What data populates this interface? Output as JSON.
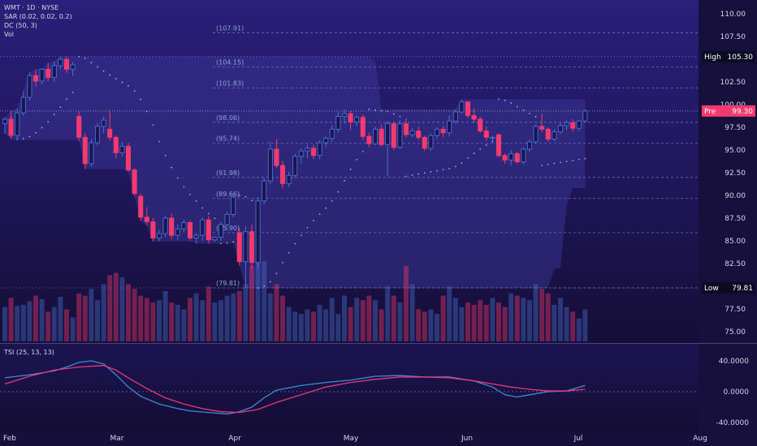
{
  "header": {
    "symbol_line": "WMT · 1D · NYSE",
    "sar_label": "SAR (0.02, 0.02, 0.2)",
    "dc_label": "DC (50, 3)",
    "vol_label": "Vol"
  },
  "tsi_panel": {
    "label": "TSI (25, 13, 13)",
    "ticks": [
      "40.0000",
      "0.0000",
      "-40.0000"
    ]
  },
  "colors": {
    "background": "#160f3a",
    "up": "#4a6fd0",
    "down": "#f23a6e",
    "dc_fill": "#3f3a9e",
    "tsi_line": "#3f8ad8",
    "tsi_signal": "#e8387a",
    "high_tag": "#0b0c22",
    "pre_tag": "#f23a6e"
  },
  "chart_data": {
    "type": "candlestick",
    "x_labels": [
      "Feb",
      "Mar",
      "Apr",
      "May",
      "Jun",
      "Jul",
      "Aug"
    ],
    "y_ticks": [
      "110.00",
      "107.50",
      "105.30",
      "102.50",
      "100.00",
      "97.50",
      "95.00",
      "92.50",
      "90.00",
      "87.50",
      "85.00",
      "82.50",
      "80.00",
      "77.50",
      "75.00"
    ],
    "y_range": [
      74,
      111
    ],
    "high": {
      "label": "High",
      "value": "105.30"
    },
    "low": {
      "label": "Low",
      "value": "79.81"
    },
    "pre": {
      "label": "Pre",
      "value": "99.30"
    },
    "fib_levels": [
      "(107.91)",
      "(104.15)",
      "(101.83)",
      "(98.06)",
      "(95.74)",
      "(91.98)",
      "(89.66)",
      "(85.90)",
      "(79.81)"
    ],
    "candles": [
      [
        97.9,
        98.6,
        96.8,
        98.4
      ],
      [
        98.4,
        99.3,
        96.2,
        96.6
      ],
      [
        96.6,
        99.6,
        96.1,
        99.1
      ],
      [
        99.1,
        101.5,
        98.8,
        100.8
      ],
      [
        100.8,
        103.6,
        100.4,
        103.2
      ],
      [
        103.2,
        103.9,
        102.0,
        102.6
      ],
      [
        102.6,
        104.0,
        102.2,
        103.9
      ],
      [
        103.9,
        104.6,
        102.6,
        103.0
      ],
      [
        103.0,
        104.8,
        102.5,
        104.3
      ],
      [
        104.3,
        105.3,
        103.9,
        105.0
      ],
      [
        105.0,
        105.3,
        103.5,
        103.9
      ],
      [
        103.9,
        104.7,
        103.2,
        104.4
      ],
      [
        98.7,
        99.3,
        96.0,
        96.4
      ],
      [
        96.4,
        96.9,
        92.9,
        93.5
      ],
      [
        93.5,
        96.2,
        93.2,
        95.8
      ],
      [
        95.8,
        98.0,
        95.5,
        97.6
      ],
      [
        97.6,
        98.7,
        96.9,
        98.3
      ],
      [
        97.3,
        99.4,
        96.0,
        96.4
      ],
      [
        96.4,
        96.6,
        94.1,
        94.7
      ],
      [
        94.7,
        95.9,
        94.3,
        95.4
      ],
      [
        95.4,
        95.8,
        92.6,
        92.8
      ],
      [
        92.8,
        93.0,
        89.9,
        90.2
      ],
      [
        89.9,
        90.2,
        87.2,
        87.6
      ],
      [
        87.6,
        88.7,
        86.7,
        87.1
      ],
      [
        87.1,
        87.5,
        84.9,
        85.3
      ],
      [
        85.3,
        86.2,
        84.9,
        85.8
      ],
      [
        85.8,
        87.8,
        85.4,
        87.5
      ],
      [
        87.5,
        88.0,
        85.2,
        85.6
      ],
      [
        85.6,
        86.8,
        85.1,
        86.3
      ],
      [
        86.3,
        87.4,
        85.9,
        87.0
      ],
      [
        87.0,
        87.2,
        85.0,
        85.3
      ],
      [
        85.3,
        85.9,
        84.7,
        85.6
      ],
      [
        85.6,
        87.6,
        85.0,
        87.3
      ],
      [
        87.3,
        87.7,
        84.7,
        85.1
      ],
      [
        85.1,
        85.5,
        84.9,
        85.4
      ],
      [
        85.4,
        87.1,
        85.0,
        86.8
      ],
      [
        86.8,
        88.2,
        86.3,
        87.9
      ],
      [
        87.9,
        90.0,
        87.6,
        89.8
      ],
      [
        85.9,
        86.4,
        82.3,
        82.7
      ],
      [
        82.7,
        86.6,
        79.8,
        86.0
      ],
      [
        86.0,
        86.8,
        81.9,
        82.6
      ],
      [
        82.6,
        89.8,
        82.0,
        89.4
      ],
      [
        89.4,
        91.9,
        89.0,
        91.6
      ],
      [
        91.6,
        95.9,
        91.2,
        95.1
      ],
      [
        95.1,
        96.2,
        93.0,
        93.3
      ],
      [
        93.3,
        93.8,
        90.8,
        91.3
      ],
      [
        91.3,
        92.6,
        90.9,
        92.2
      ],
      [
        92.2,
        94.6,
        91.9,
        94.3
      ],
      [
        94.3,
        95.2,
        93.5,
        94.9
      ],
      [
        94.9,
        95.6,
        94.1,
        95.2
      ],
      [
        95.2,
        95.6,
        94.0,
        94.4
      ],
      [
        94.4,
        96.1,
        94.0,
        95.8
      ],
      [
        95.8,
        96.5,
        95.3,
        96.3
      ],
      [
        96.3,
        97.7,
        95.9,
        97.3
      ],
      [
        97.3,
        99.2,
        96.9,
        98.7
      ],
      [
        98.7,
        99.5,
        97.9,
        99.0
      ],
      [
        99.0,
        99.3,
        97.2,
        98.1
      ],
      [
        98.1,
        98.9,
        97.7,
        98.6
      ],
      [
        98.6,
        98.9,
        96.1,
        96.5
      ],
      [
        96.5,
        96.9,
        95.3,
        95.7
      ],
      [
        95.7,
        97.6,
        95.5,
        97.3
      ],
      [
        97.3,
        97.8,
        95.4,
        95.6
      ],
      [
        95.6,
        98.2,
        92.1,
        97.9
      ],
      [
        97.9,
        98.1,
        95.0,
        95.3
      ],
      [
        95.3,
        98.3,
        95.1,
        97.9
      ],
      [
        97.9,
        98.5,
        96.4,
        96.7
      ],
      [
        96.7,
        97.4,
        96.4,
        97.1
      ],
      [
        97.1,
        97.6,
        96.1,
        96.4
      ],
      [
        96.4,
        96.6,
        94.9,
        95.2
      ],
      [
        95.2,
        96.8,
        94.9,
        96.6
      ],
      [
        96.6,
        97.5,
        96.2,
        97.3
      ],
      [
        97.3,
        97.7,
        96.4,
        96.9
      ],
      [
        96.9,
        98.8,
        96.5,
        98.2
      ],
      [
        98.2,
        99.5,
        97.9,
        99.2
      ],
      [
        99.2,
        100.6,
        99.0,
        100.3
      ],
      [
        100.3,
        100.4,
        98.5,
        98.8
      ],
      [
        98.8,
        99.6,
        98.0,
        98.4
      ],
      [
        98.4,
        98.7,
        96.9,
        97.1
      ],
      [
        97.1,
        97.6,
        96.0,
        96.4
      ],
      [
        96.4,
        96.6,
        96.0,
        96.4
      ],
      [
        96.7,
        96.8,
        94.2,
        94.4
      ],
      [
        94.4,
        94.6,
        93.5,
        93.9
      ],
      [
        93.9,
        95.0,
        93.3,
        94.6
      ],
      [
        94.6,
        94.8,
        93.5,
        93.7
      ],
      [
        93.7,
        95.3,
        93.4,
        95.1
      ],
      [
        95.1,
        96.2,
        94.8,
        95.9
      ],
      [
        95.9,
        97.8,
        95.7,
        97.6
      ],
      [
        97.6,
        99.0,
        97.0,
        97.3
      ],
      [
        97.3,
        97.5,
        95.9,
        96.2
      ],
      [
        96.2,
        97.3,
        96.0,
        97.0
      ],
      [
        97.0,
        98.0,
        96.8,
        97.7
      ],
      [
        97.7,
        98.3,
        97.2,
        98.0
      ],
      [
        98.0,
        98.4,
        97.0,
        97.4
      ],
      [
        97.4,
        98.3,
        97.1,
        98.2
      ],
      [
        98.2,
        99.5,
        98.0,
        99.3
      ]
    ],
    "volume": [
      30,
      38,
      31,
      32,
      35,
      40,
      37,
      26,
      30,
      39,
      28,
      21,
      42,
      40,
      46,
      36,
      50,
      58,
      60,
      56,
      50,
      46,
      40,
      38,
      34,
      36,
      44,
      34,
      32,
      28,
      38,
      42,
      36,
      48,
      34,
      36,
      40,
      42,
      44,
      50,
      66,
      78,
      70,
      42,
      50,
      40,
      30,
      26,
      24,
      28,
      26,
      32,
      28,
      38,
      24,
      40,
      30,
      38,
      36,
      40,
      36,
      28,
      48,
      40,
      34,
      66,
      50,
      28,
      26,
      28,
      24,
      40,
      48,
      38,
      30,
      34,
      32,
      36,
      32,
      38,
      34,
      30,
      42,
      40,
      38,
      36,
      50,
      46,
      42,
      32,
      38,
      30,
      26,
      20,
      28
    ],
    "tsi": {
      "line": [
        [
          0,
          18
        ],
        [
          4,
          22
        ],
        [
          8,
          27
        ],
        [
          10,
          32
        ],
        [
          12,
          38
        ],
        [
          14,
          40
        ],
        [
          16,
          36
        ],
        [
          18,
          22
        ],
        [
          20,
          6
        ],
        [
          22,
          -6
        ],
        [
          25,
          -16
        ],
        [
          28,
          -22
        ],
        [
          30,
          -25
        ],
        [
          33,
          -27
        ],
        [
          36,
          -29
        ],
        [
          38,
          -26
        ],
        [
          40,
          -20
        ],
        [
          42,
          -8
        ],
        [
          44,
          2
        ],
        [
          48,
          8
        ],
        [
          52,
          12
        ],
        [
          56,
          15
        ],
        [
          60,
          20
        ],
        [
          64,
          21
        ],
        [
          68,
          19
        ],
        [
          72,
          19
        ],
        [
          76,
          14
        ],
        [
          79,
          6
        ],
        [
          81,
          -4
        ],
        [
          83,
          -7
        ],
        [
          85,
          -4
        ],
        [
          88,
          0
        ],
        [
          91,
          1
        ],
        [
          94,
          8
        ]
      ],
      "signal": [
        [
          0,
          10
        ],
        [
          4,
          20
        ],
        [
          8,
          28
        ],
        [
          12,
          32
        ],
        [
          16,
          34
        ],
        [
          18,
          28
        ],
        [
          20,
          18
        ],
        [
          23,
          4
        ],
        [
          26,
          -8
        ],
        [
          29,
          -16
        ],
        [
          32,
          -22
        ],
        [
          35,
          -26
        ],
        [
          38,
          -27
        ],
        [
          41,
          -23
        ],
        [
          44,
          -14
        ],
        [
          48,
          -4
        ],
        [
          52,
          6
        ],
        [
          56,
          12
        ],
        [
          60,
          16
        ],
        [
          64,
          19
        ],
        [
          68,
          19
        ],
        [
          72,
          18
        ],
        [
          76,
          14
        ],
        [
          79,
          10
        ],
        [
          82,
          6
        ],
        [
          85,
          3
        ],
        [
          88,
          1
        ],
        [
          91,
          1
        ],
        [
          94,
          3
        ]
      ]
    }
  }
}
